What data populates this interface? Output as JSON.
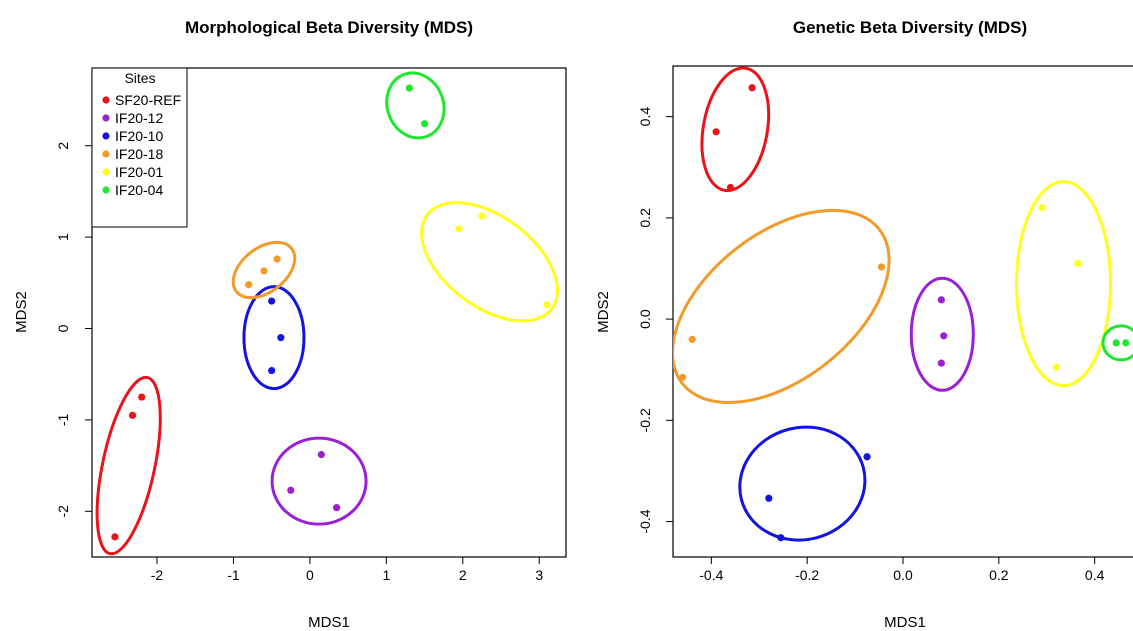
{
  "chart_data": [
    {
      "type": "scatter",
      "title": "Morphological Beta Diversity (MDS)",
      "xlabel": "MDS1",
      "ylabel": "MDS2",
      "xlim": [
        -2.85,
        3.35
      ],
      "ylim": [
        -2.5,
        2.85
      ],
      "xticks": [
        -2,
        -1,
        0,
        1,
        2,
        3
      ],
      "yticks": [
        -2,
        -1,
        0,
        1,
        2
      ],
      "xtick_labels": [
        "-2",
        "-1",
        "0",
        "1",
        "2",
        "3"
      ],
      "ytick_labels": [
        "-2",
        "-1",
        "0",
        "1",
        "2"
      ],
      "legend": {
        "title": "Sites",
        "position": "top-left"
      },
      "ellipses": true,
      "series": [
        {
          "name": "SF20-REF",
          "color": "#e8131b",
          "x": [
            -2.2,
            -2.32,
            -2.55
          ],
          "y": [
            -0.75,
            -0.95,
            -2.28
          ]
        },
        {
          "name": "IF20-12",
          "color": "#9b1fd6",
          "x": [
            0.15,
            -0.25,
            0.35
          ],
          "y": [
            -1.38,
            -1.77,
            -1.96
          ]
        },
        {
          "name": "IF20-10",
          "color": "#1414e0",
          "x": [
            -0.5,
            -0.38,
            -0.5
          ],
          "y": [
            0.3,
            -0.1,
            -0.46
          ]
        },
        {
          "name": "IF20-18",
          "color": "#f39a2a",
          "x": [
            -0.43,
            -0.6,
            -0.8
          ],
          "y": [
            0.76,
            0.63,
            0.48
          ]
        },
        {
          "name": "IF20-01",
          "color": "#ffff1a",
          "x": [
            2.25,
            1.95,
            3.1
          ],
          "y": [
            1.23,
            1.09,
            0.26
          ]
        },
        {
          "name": "IF20-04",
          "color": "#1ee82e",
          "x": [
            1.3,
            1.5
          ],
          "y": [
            2.63,
            2.24
          ]
        }
      ]
    },
    {
      "type": "scatter",
      "title": "Genetic Beta Diversity (MDS)",
      "xlabel": "MDS1",
      "ylabel": "MDS2",
      "xlim": [
        -0.48,
        0.48
      ],
      "ylim": [
        -0.47,
        0.5
      ],
      "xticks": [
        -0.4,
        -0.2,
        0.0,
        0.2,
        0.4
      ],
      "yticks": [
        -0.4,
        -0.2,
        0.0,
        0.2,
        0.4
      ],
      "xtick_labels": [
        "-0.4",
        "-0.2",
        "0.0",
        "0.2",
        "0.4"
      ],
      "ytick_labels": [
        "-0.4",
        "-0.2",
        "0.0",
        "0.2",
        "0.4"
      ],
      "ellipses": true,
      "series": [
        {
          "color": "#e8131b",
          "x": [
            -0.315,
            -0.39,
            -0.36
          ],
          "y": [
            0.457,
            0.37,
            0.26
          ]
        },
        {
          "color": "#9b1fd6",
          "x": [
            0.08,
            0.085,
            0.08
          ],
          "y": [
            0.038,
            -0.033,
            -0.087
          ]
        },
        {
          "color": "#1414e0",
          "x": [
            -0.075,
            -0.28,
            -0.255
          ],
          "y": [
            -0.272,
            -0.354,
            -0.432
          ]
        },
        {
          "color": "#f39a2a",
          "x": [
            -0.045,
            -0.44,
            -0.46
          ],
          "y": [
            0.103,
            -0.04,
            -0.115
          ]
        },
        {
          "color": "#ffff1a",
          "x": [
            0.29,
            0.365,
            0.32
          ],
          "y": [
            0.22,
            0.11,
            -0.095
          ]
        },
        {
          "color": "#1ee82e",
          "x": [
            0.445,
            0.465
          ],
          "y": [
            -0.047,
            -0.047
          ]
        }
      ]
    }
  ]
}
